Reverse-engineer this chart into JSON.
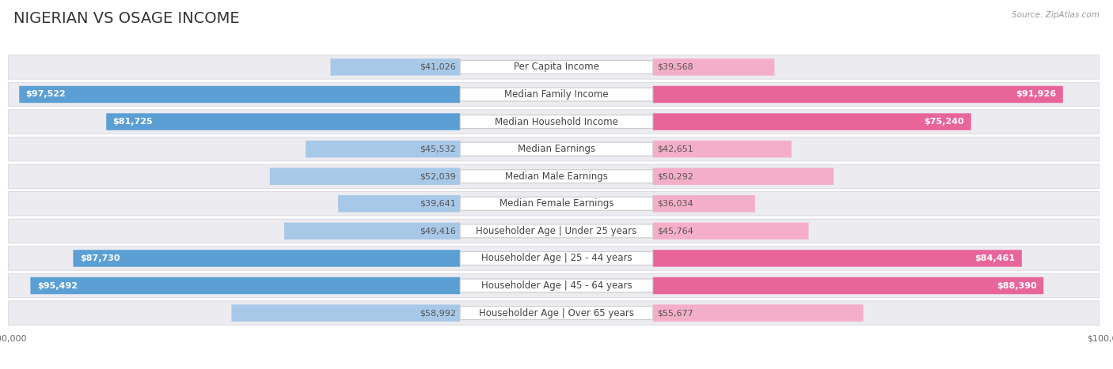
{
  "title": "NIGERIAN VS OSAGE INCOME",
  "source": "Source: ZipAtlas.com",
  "categories": [
    "Per Capita Income",
    "Median Family Income",
    "Median Household Income",
    "Median Earnings",
    "Median Male Earnings",
    "Median Female Earnings",
    "Householder Age | Under 25 years",
    "Householder Age | 25 - 44 years",
    "Householder Age | 45 - 64 years",
    "Householder Age | Over 65 years"
  ],
  "nigerian_values": [
    41026,
    97522,
    81725,
    45532,
    52039,
    39641,
    49416,
    87730,
    95492,
    58992
  ],
  "osage_values": [
    39568,
    91926,
    75240,
    42651,
    50292,
    36034,
    45764,
    84461,
    88390,
    55677
  ],
  "max_val": 100000,
  "nigerian_color_light": "#a8c8e8",
  "nigerian_color_dark": "#5b9fd4",
  "osage_color_light": "#f5aec8",
  "osage_color_dark": "#e8659a",
  "row_bg_color": "#ebebf0",
  "title_fontsize": 14,
  "label_fontsize": 8.5,
  "value_fontsize": 8,
  "legend_fontsize": 9,
  "threshold": 75000
}
